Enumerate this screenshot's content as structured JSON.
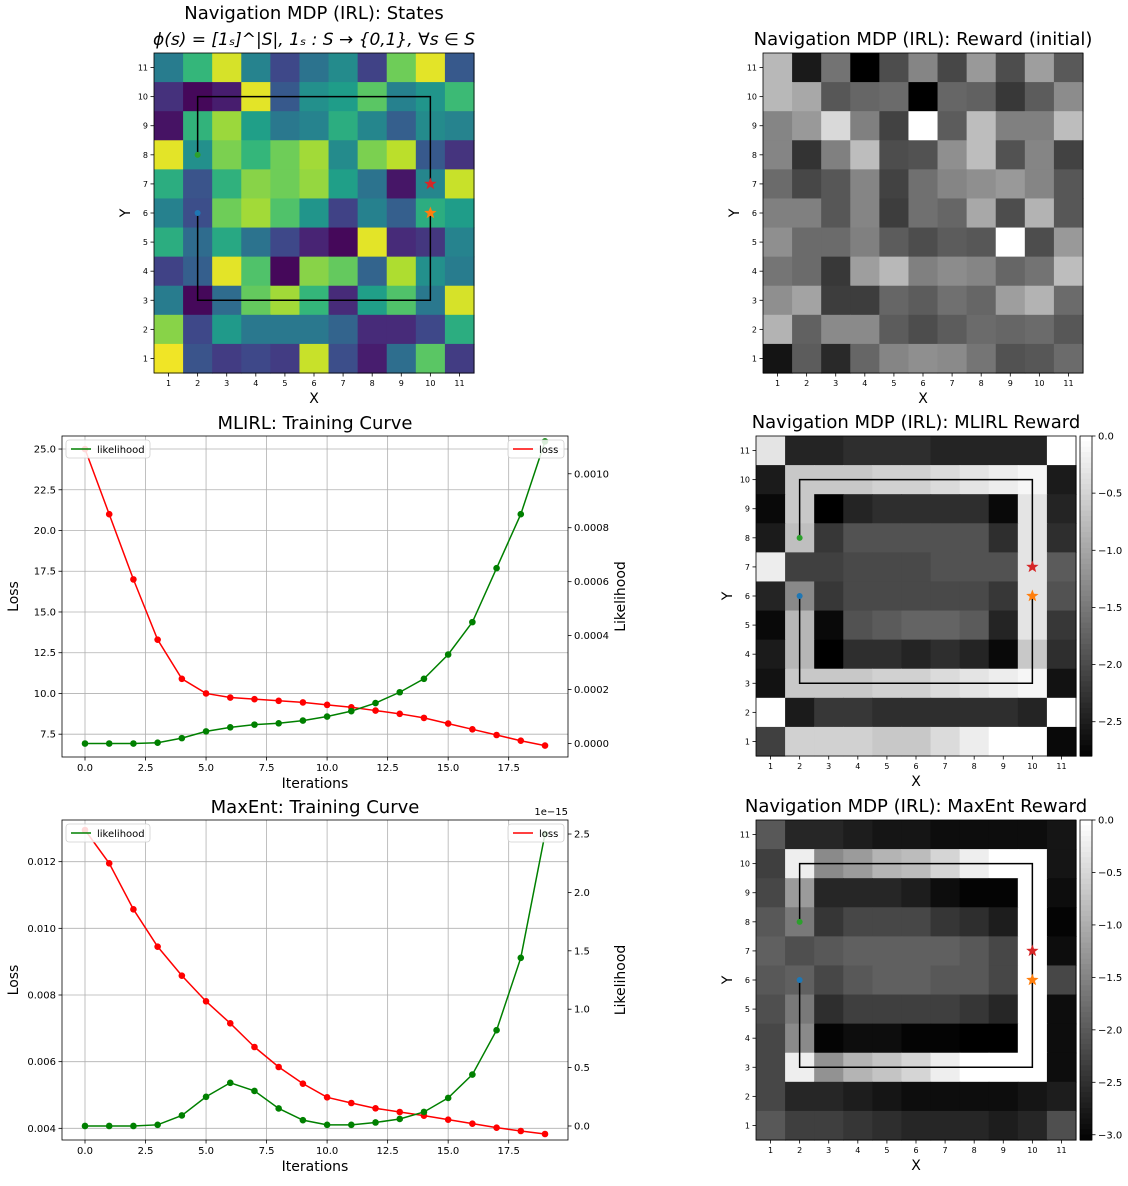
{
  "page": {
    "background": "#ffffff"
  },
  "colors": {
    "green": "#008000",
    "red": "#ff0000",
    "grid": "#b0b0b0",
    "marker_green": "#2ca02c",
    "marker_blue": "#1f77b4",
    "marker_red": "#d62728",
    "marker_orange": "#ff7f0e",
    "path": "#000000"
  },
  "chart_data": [
    {
      "id": "states",
      "type": "heatmap",
      "title": "Navigation MDP (IRL): States",
      "subtitle": "ϕ(s) = [1ₛ]^|S|, 1ₛ : S → {0,1}, ∀s ∈ S",
      "xlabel": "X",
      "ylabel": "Y",
      "colormap": "viridis",
      "x_ticks": [
        "1",
        "2",
        "3",
        "4",
        "5",
        "6",
        "7",
        "8",
        "9",
        "10",
        "11"
      ],
      "y_ticks": [
        "1",
        "2",
        "3",
        "4",
        "5",
        "6",
        "7",
        "8",
        "9",
        "10",
        "11"
      ],
      "rows_top_to_bottom": [
        [
          0.42,
          0.66,
          0.94,
          0.45,
          0.22,
          0.38,
          0.48,
          0.2,
          0.78,
          0.96,
          0.28
        ],
        [
          0.14,
          0.02,
          0.08,
          0.96,
          0.28,
          0.5,
          0.55,
          0.74,
          0.44,
          0.52,
          0.68
        ],
        [
          0.05,
          0.65,
          0.85,
          0.56,
          0.4,
          0.45,
          0.62,
          0.46,
          0.3,
          0.48,
          0.45
        ],
        [
          0.96,
          0.5,
          0.8,
          0.66,
          0.78,
          0.86,
          0.48,
          0.8,
          0.9,
          0.28,
          0.15
        ],
        [
          0.62,
          0.26,
          0.64,
          0.82,
          0.78,
          0.84,
          0.56,
          0.38,
          0.06,
          0.46,
          0.92
        ],
        [
          0.44,
          0.24,
          0.78,
          0.86,
          0.72,
          0.52,
          0.2,
          0.44,
          0.3,
          0.62,
          0.55
        ],
        [
          0.62,
          0.35,
          0.6,
          0.38,
          0.22,
          0.1,
          0.02,
          0.96,
          0.12,
          0.16,
          0.45
        ],
        [
          0.2,
          0.3,
          0.96,
          0.72,
          0.02,
          0.82,
          0.76,
          0.32,
          0.88,
          0.5,
          0.42
        ],
        [
          0.42,
          0.02,
          0.35,
          0.76,
          0.86,
          0.66,
          0.12,
          0.56,
          0.72,
          0.4,
          0.94
        ],
        [
          0.82,
          0.22,
          0.54,
          0.4,
          0.4,
          0.4,
          0.32,
          0.12,
          0.12,
          0.22,
          0.62
        ],
        [
          0.98,
          0.26,
          0.18,
          0.22,
          0.18,
          0.92,
          0.24,
          0.08,
          0.36,
          0.74,
          0.18
        ]
      ],
      "path": [
        [
          2,
          10
        ],
        [
          10,
          10
        ],
        [
          10,
          7
        ]
      ],
      "path2": [
        [
          2,
          6
        ],
        [
          2,
          3
        ],
        [
          10,
          3
        ],
        [
          10,
          6
        ]
      ],
      "path_start": [
        2,
        8
      ],
      "markers": [
        {
          "x": 2,
          "y": 8,
          "shape": "dot",
          "color": "#2ca02c"
        },
        {
          "x": 2,
          "y": 6,
          "shape": "dot",
          "color": "#1f77b4"
        },
        {
          "x": 10,
          "y": 7,
          "shape": "star",
          "color": "#d62728"
        },
        {
          "x": 10,
          "y": 6,
          "shape": "star",
          "color": "#ff7f0e"
        }
      ]
    },
    {
      "id": "reward_initial",
      "type": "heatmap",
      "title": "Navigation MDP (IRL): Reward (initial)",
      "xlabel": "X",
      "ylabel": "Y",
      "colormap": "gray",
      "x_ticks": [
        "1",
        "2",
        "3",
        "4",
        "5",
        "6",
        "7",
        "8",
        "9",
        "10",
        "11"
      ],
      "y_ticks": [
        "1",
        "2",
        "3",
        "4",
        "5",
        "6",
        "7",
        "8",
        "9",
        "10",
        "11"
      ],
      "rows_top_to_bottom": [
        [
          0.72,
          0.1,
          0.45,
          0.0,
          0.3,
          0.52,
          0.28,
          0.6,
          0.3,
          0.62,
          0.35
        ],
        [
          0.72,
          0.66,
          0.34,
          0.4,
          0.42,
          0.0,
          0.4,
          0.38,
          0.22,
          0.36,
          0.55
        ],
        [
          0.52,
          0.6,
          0.85,
          0.5,
          0.26,
          1.0,
          0.36,
          0.74,
          0.5,
          0.5,
          0.74
        ],
        [
          0.52,
          0.2,
          0.5,
          0.74,
          0.3,
          0.32,
          0.56,
          0.74,
          0.32,
          0.52,
          0.26
        ],
        [
          0.42,
          0.28,
          0.34,
          0.52,
          0.26,
          0.44,
          0.52,
          0.56,
          0.6,
          0.52,
          0.34
        ],
        [
          0.5,
          0.5,
          0.34,
          0.52,
          0.24,
          0.44,
          0.4,
          0.66,
          0.3,
          0.7,
          0.34
        ],
        [
          0.56,
          0.42,
          0.42,
          0.5,
          0.36,
          0.3,
          0.36,
          0.34,
          1.0,
          0.3,
          0.6
        ],
        [
          0.46,
          0.42,
          0.22,
          0.62,
          0.72,
          0.5,
          0.55,
          0.52,
          0.4,
          0.45,
          0.74
        ],
        [
          0.56,
          0.64,
          0.24,
          0.24,
          0.4,
          0.36,
          0.44,
          0.4,
          0.62,
          0.7,
          0.42
        ],
        [
          0.7,
          0.38,
          0.54,
          0.54,
          0.36,
          0.3,
          0.36,
          0.42,
          0.4,
          0.42,
          0.34
        ],
        [
          0.08,
          0.36,
          0.16,
          0.4,
          0.52,
          0.56,
          0.54,
          0.46,
          0.32,
          0.34,
          0.42
        ]
      ]
    },
    {
      "id": "mlirl_reward",
      "type": "heatmap",
      "title": "Navigation MDP (IRL): MLIRL Reward",
      "xlabel": "X",
      "ylabel": "Y",
      "colormap": "gray",
      "vmin": -2.8,
      "vmax": 0.0,
      "colorbar_ticks": [
        "0.0",
        "−0.5",
        "−1.0",
        "−1.5",
        "−2.0",
        "−2.5"
      ],
      "colorbar_values": [
        0.0,
        -0.5,
        -1.0,
        -1.5,
        -2.0,
        -2.5
      ],
      "x_ticks": [
        "1",
        "2",
        "3",
        "4",
        "5",
        "6",
        "7",
        "8",
        "9",
        "10",
        "11"
      ],
      "y_ticks": [
        "1",
        "2",
        "3",
        "4",
        "5",
        "6",
        "7",
        "8",
        "9",
        "10",
        "11"
      ],
      "rows_top_to_bottom": [
        [
          -0.3,
          -2.4,
          -2.4,
          -2.3,
          -2.3,
          -2.3,
          -2.4,
          -2.4,
          -2.4,
          -2.4,
          0.0
        ],
        [
          -2.5,
          -0.6,
          -0.6,
          -0.6,
          -0.5,
          -0.5,
          -0.4,
          -0.3,
          -0.2,
          -0.1,
          -2.5
        ],
        [
          -2.7,
          -0.6,
          -2.8,
          -2.4,
          -2.3,
          -2.3,
          -2.3,
          -2.3,
          -2.7,
          -0.3,
          -2.4
        ],
        [
          -2.5,
          -0.7,
          -2.2,
          -1.9,
          -1.9,
          -1.9,
          -1.9,
          -1.9,
          -2.3,
          -0.3,
          -2.3
        ],
        [
          -0.2,
          -2.1,
          -2.1,
          -2.0,
          -2.0,
          -2.0,
          -1.9,
          -1.9,
          -1.9,
          -0.3,
          -1.8
        ],
        [
          -2.4,
          -1.3,
          -2.2,
          -2.0,
          -2.0,
          -2.0,
          -2.0,
          -2.0,
          -2.2,
          -0.3,
          -1.9
        ],
        [
          -2.7,
          -0.8,
          -2.7,
          -1.9,
          -1.8,
          -1.7,
          -1.7,
          -1.8,
          -2.4,
          -0.3,
          -2.2
        ],
        [
          -2.5,
          -0.8,
          -2.8,
          -2.3,
          -2.3,
          -2.4,
          -2.3,
          -2.4,
          -2.7,
          -0.6,
          -2.3
        ],
        [
          -2.6,
          -0.6,
          -0.6,
          -0.6,
          -0.5,
          -0.5,
          -0.4,
          -0.3,
          -0.2,
          -0.1,
          -2.6
        ],
        [
          0.0,
          -2.5,
          -2.2,
          -2.2,
          -2.3,
          -2.3,
          -2.3,
          -2.3,
          -2.3,
          -2.4,
          0.0
        ],
        [
          -2.1,
          -0.5,
          -0.5,
          -0.5,
          -0.6,
          -0.6,
          -0.4,
          -0.2,
          0.0,
          0.0,
          -2.7
        ]
      ],
      "path": [
        [
          2,
          10
        ],
        [
          10,
          10
        ],
        [
          10,
          7
        ]
      ],
      "path2": [
        [
          2,
          6
        ],
        [
          2,
          3
        ],
        [
          10,
          3
        ],
        [
          10,
          6
        ]
      ],
      "path_start": [
        2,
        8
      ],
      "markers": [
        {
          "x": 2,
          "y": 8,
          "shape": "dot",
          "color": "#2ca02c"
        },
        {
          "x": 2,
          "y": 6,
          "shape": "dot",
          "color": "#1f77b4"
        },
        {
          "x": 10,
          "y": 7,
          "shape": "star",
          "color": "#d62728"
        },
        {
          "x": 10,
          "y": 6,
          "shape": "star",
          "color": "#ff7f0e"
        }
      ]
    },
    {
      "id": "maxent_reward",
      "type": "heatmap",
      "title": "Navigation MDP (IRL): MaxEnt Reward",
      "xlabel": "X",
      "ylabel": "Y",
      "colormap": "gray",
      "vmin": -3.05,
      "vmax": 0.0,
      "colorbar_ticks": [
        "0.0",
        "−0.5",
        "−1.0",
        "−1.5",
        "−2.0",
        "−2.5",
        "−3.0"
      ],
      "colorbar_values": [
        0.0,
        -0.5,
        -1.0,
        -1.5,
        -2.0,
        -2.5,
        -3.0
      ],
      "x_ticks": [
        "1",
        "2",
        "3",
        "4",
        "5",
        "6",
        "7",
        "8",
        "9",
        "10",
        "11"
      ],
      "y_ticks": [
        "1",
        "2",
        "3",
        "4",
        "5",
        "6",
        "7",
        "8",
        "9",
        "10",
        "11"
      ],
      "rows_top_to_bottom": [
        [
          -2.0,
          -2.6,
          -2.6,
          -2.7,
          -2.8,
          -2.8,
          -2.9,
          -2.9,
          -2.9,
          -2.9,
          -2.8
        ],
        [
          -2.3,
          -0.2,
          -1.4,
          -1.2,
          -0.9,
          -0.8,
          -0.5,
          -0.2,
          0.0,
          0.0,
          -2.8
        ],
        [
          -2.2,
          -1.2,
          -2.6,
          -2.6,
          -2.6,
          -2.7,
          -2.9,
          -3.0,
          -3.0,
          0.0,
          -2.9
        ],
        [
          -2.0,
          -1.6,
          -2.4,
          -2.2,
          -2.2,
          -2.2,
          -2.4,
          -2.5,
          -2.7,
          0.0,
          -3.0
        ],
        [
          -1.9,
          -2.1,
          -2.0,
          -1.9,
          -1.9,
          -1.9,
          -1.9,
          -2.0,
          -2.2,
          0.0,
          -2.9
        ],
        [
          -2.0,
          -1.9,
          -2.2,
          -2.0,
          -1.9,
          -1.9,
          -2.0,
          -2.0,
          -2.2,
          0.0,
          -2.2
        ],
        [
          -2.1,
          -1.6,
          -2.5,
          -2.3,
          -2.3,
          -2.3,
          -2.3,
          -2.4,
          -2.6,
          0.0,
          -2.9
        ],
        [
          -2.2,
          -1.4,
          -3.0,
          -2.9,
          -2.9,
          -3.0,
          -3.0,
          -3.05,
          -3.05,
          0.0,
          -2.9
        ],
        [
          -2.2,
          -0.2,
          -1.3,
          -0.9,
          -0.7,
          -0.5,
          -0.2,
          0.0,
          0.0,
          0.0,
          -2.9
        ],
        [
          -2.2,
          -2.6,
          -2.6,
          -2.7,
          -2.8,
          -2.9,
          -2.9,
          -2.9,
          -2.9,
          -2.8,
          -2.7
        ],
        [
          -2.0,
          -2.3,
          -2.3,
          -2.4,
          -2.5,
          -2.6,
          -2.6,
          -2.6,
          -2.7,
          -2.6,
          -2.1
        ]
      ],
      "path": [
        [
          2,
          10
        ],
        [
          10,
          10
        ],
        [
          10,
          3
        ],
        [
          2,
          3
        ],
        [
          2,
          6
        ]
      ],
      "path_start": [
        2,
        8
      ],
      "markers": [
        {
          "x": 2,
          "y": 8,
          "shape": "dot",
          "color": "#2ca02c"
        },
        {
          "x": 2,
          "y": 6,
          "shape": "dot",
          "color": "#1f77b4"
        },
        {
          "x": 10,
          "y": 7,
          "shape": "star",
          "color": "#d62728"
        },
        {
          "x": 10,
          "y": 6,
          "shape": "star",
          "color": "#ff7f0e"
        }
      ]
    },
    {
      "id": "mlirl_curve",
      "type": "line",
      "title": "MLIRL: Training Curve",
      "xlabel": "Iterations",
      "ylabel": "Loss",
      "ylabel_right": "Likelihood",
      "x": [
        0,
        1,
        2,
        3,
        4,
        5,
        6,
        7,
        8,
        9,
        10,
        11,
        12,
        13,
        14,
        15,
        16,
        17,
        18,
        19
      ],
      "xlim": [
        -0.95,
        19.95
      ],
      "x_ticks": [
        0,
        2.5,
        5,
        7.5,
        10,
        12.5,
        15,
        17.5
      ],
      "x_tick_labels": [
        "0.0",
        "2.5",
        "5.0",
        "7.5",
        "10.0",
        "12.5",
        "15.0",
        "17.5"
      ],
      "ylim": [
        6.1,
        25.8
      ],
      "y_ticks": [
        7.5,
        10,
        12.5,
        15,
        17.5,
        20,
        22.5,
        25
      ],
      "y_tick_labels": [
        "7.5",
        "10.0",
        "12.5",
        "15.0",
        "17.5",
        "20.0",
        "22.5",
        "25.0"
      ],
      "ylim_right": [
        -5e-05,
        0.00114
      ],
      "y_ticks_right": [
        0,
        0.0002,
        0.0004,
        0.0006,
        0.0008,
        0.001
      ],
      "y_tick_labels_right": [
        "0.0000",
        "0.0002",
        "0.0004",
        "0.0006",
        "0.0008",
        "0.0010"
      ],
      "grid": true,
      "series": [
        {
          "name": "loss",
          "axis": "left",
          "color": "#ff0000",
          "values": [
            25.0,
            21.0,
            17.0,
            13.3,
            10.9,
            10.0,
            9.75,
            9.65,
            9.55,
            9.45,
            9.3,
            9.15,
            8.95,
            8.75,
            8.5,
            8.15,
            7.8,
            7.45,
            7.1,
            6.8
          ]
        },
        {
          "name": "likelihood",
          "axis": "right",
          "color": "#008000",
          "values": [
            0.0,
            0.0,
            0.0,
            3e-06,
            2e-05,
            4.5e-05,
            6e-05,
            7e-05,
            7.5e-05,
            8.5e-05,
            0.0001,
            0.00012,
            0.00015,
            0.00019,
            0.00024,
            0.00033,
            0.00045,
            0.00065,
            0.00085,
            0.00112
          ]
        }
      ],
      "legend_left": "likelihood",
      "legend_right": "loss"
    },
    {
      "id": "maxent_curve",
      "type": "line",
      "title": "MaxEnt: Training Curve",
      "xlabel": "Iterations",
      "ylabel": "Loss",
      "ylabel_right": "Likelihood",
      "right_offset_text": "1e−15",
      "x": [
        0,
        1,
        2,
        3,
        4,
        5,
        6,
        7,
        8,
        9,
        10,
        11,
        12,
        13,
        14,
        15,
        16,
        17,
        18,
        19
      ],
      "xlim": [
        -0.95,
        19.95
      ],
      "x_ticks": [
        0,
        2.5,
        5,
        7.5,
        10,
        12.5,
        15,
        17.5
      ],
      "x_tick_labels": [
        "0.0",
        "2.5",
        "5.0",
        "7.5",
        "10.0",
        "12.5",
        "15.0",
        "17.5"
      ],
      "ylim": [
        0.00365,
        0.01325
      ],
      "y_ticks": [
        0.004,
        0.006,
        0.008,
        0.01,
        0.012
      ],
      "y_tick_labels": [
        "0.004",
        "0.006",
        "0.008",
        "0.010",
        "0.012"
      ],
      "ylim_right": [
        -0.12,
        2.62
      ],
      "y_ticks_right": [
        0,
        0.5,
        1,
        1.5,
        2,
        2.5
      ],
      "y_tick_labels_right": [
        "0.0",
        "0.5",
        "1.0",
        "1.5",
        "2.0",
        "2.5"
      ],
      "grid": true,
      "series": [
        {
          "name": "loss",
          "axis": "left",
          "color": "#ff0000",
          "values": [
            0.01295,
            0.01195,
            0.01057,
            0.00945,
            0.00858,
            0.00781,
            0.00715,
            0.00644,
            0.00584,
            0.00534,
            0.00493,
            0.00476,
            0.0046,
            0.00449,
            0.00438,
            0.00426,
            0.00414,
            0.00402,
            0.00392,
            0.00383
          ]
        },
        {
          "name": "likelihood",
          "axis": "right",
          "color": "#008000",
          "values": [
            0.0,
            0.0,
            0.0,
            0.01,
            0.09,
            0.25,
            0.37,
            0.3,
            0.15,
            0.05,
            0.01,
            0.01,
            0.03,
            0.06,
            0.12,
            0.24,
            0.44,
            0.82,
            1.44,
            2.5
          ]
        }
      ],
      "legend_left": "likelihood",
      "legend_right": "loss"
    }
  ]
}
